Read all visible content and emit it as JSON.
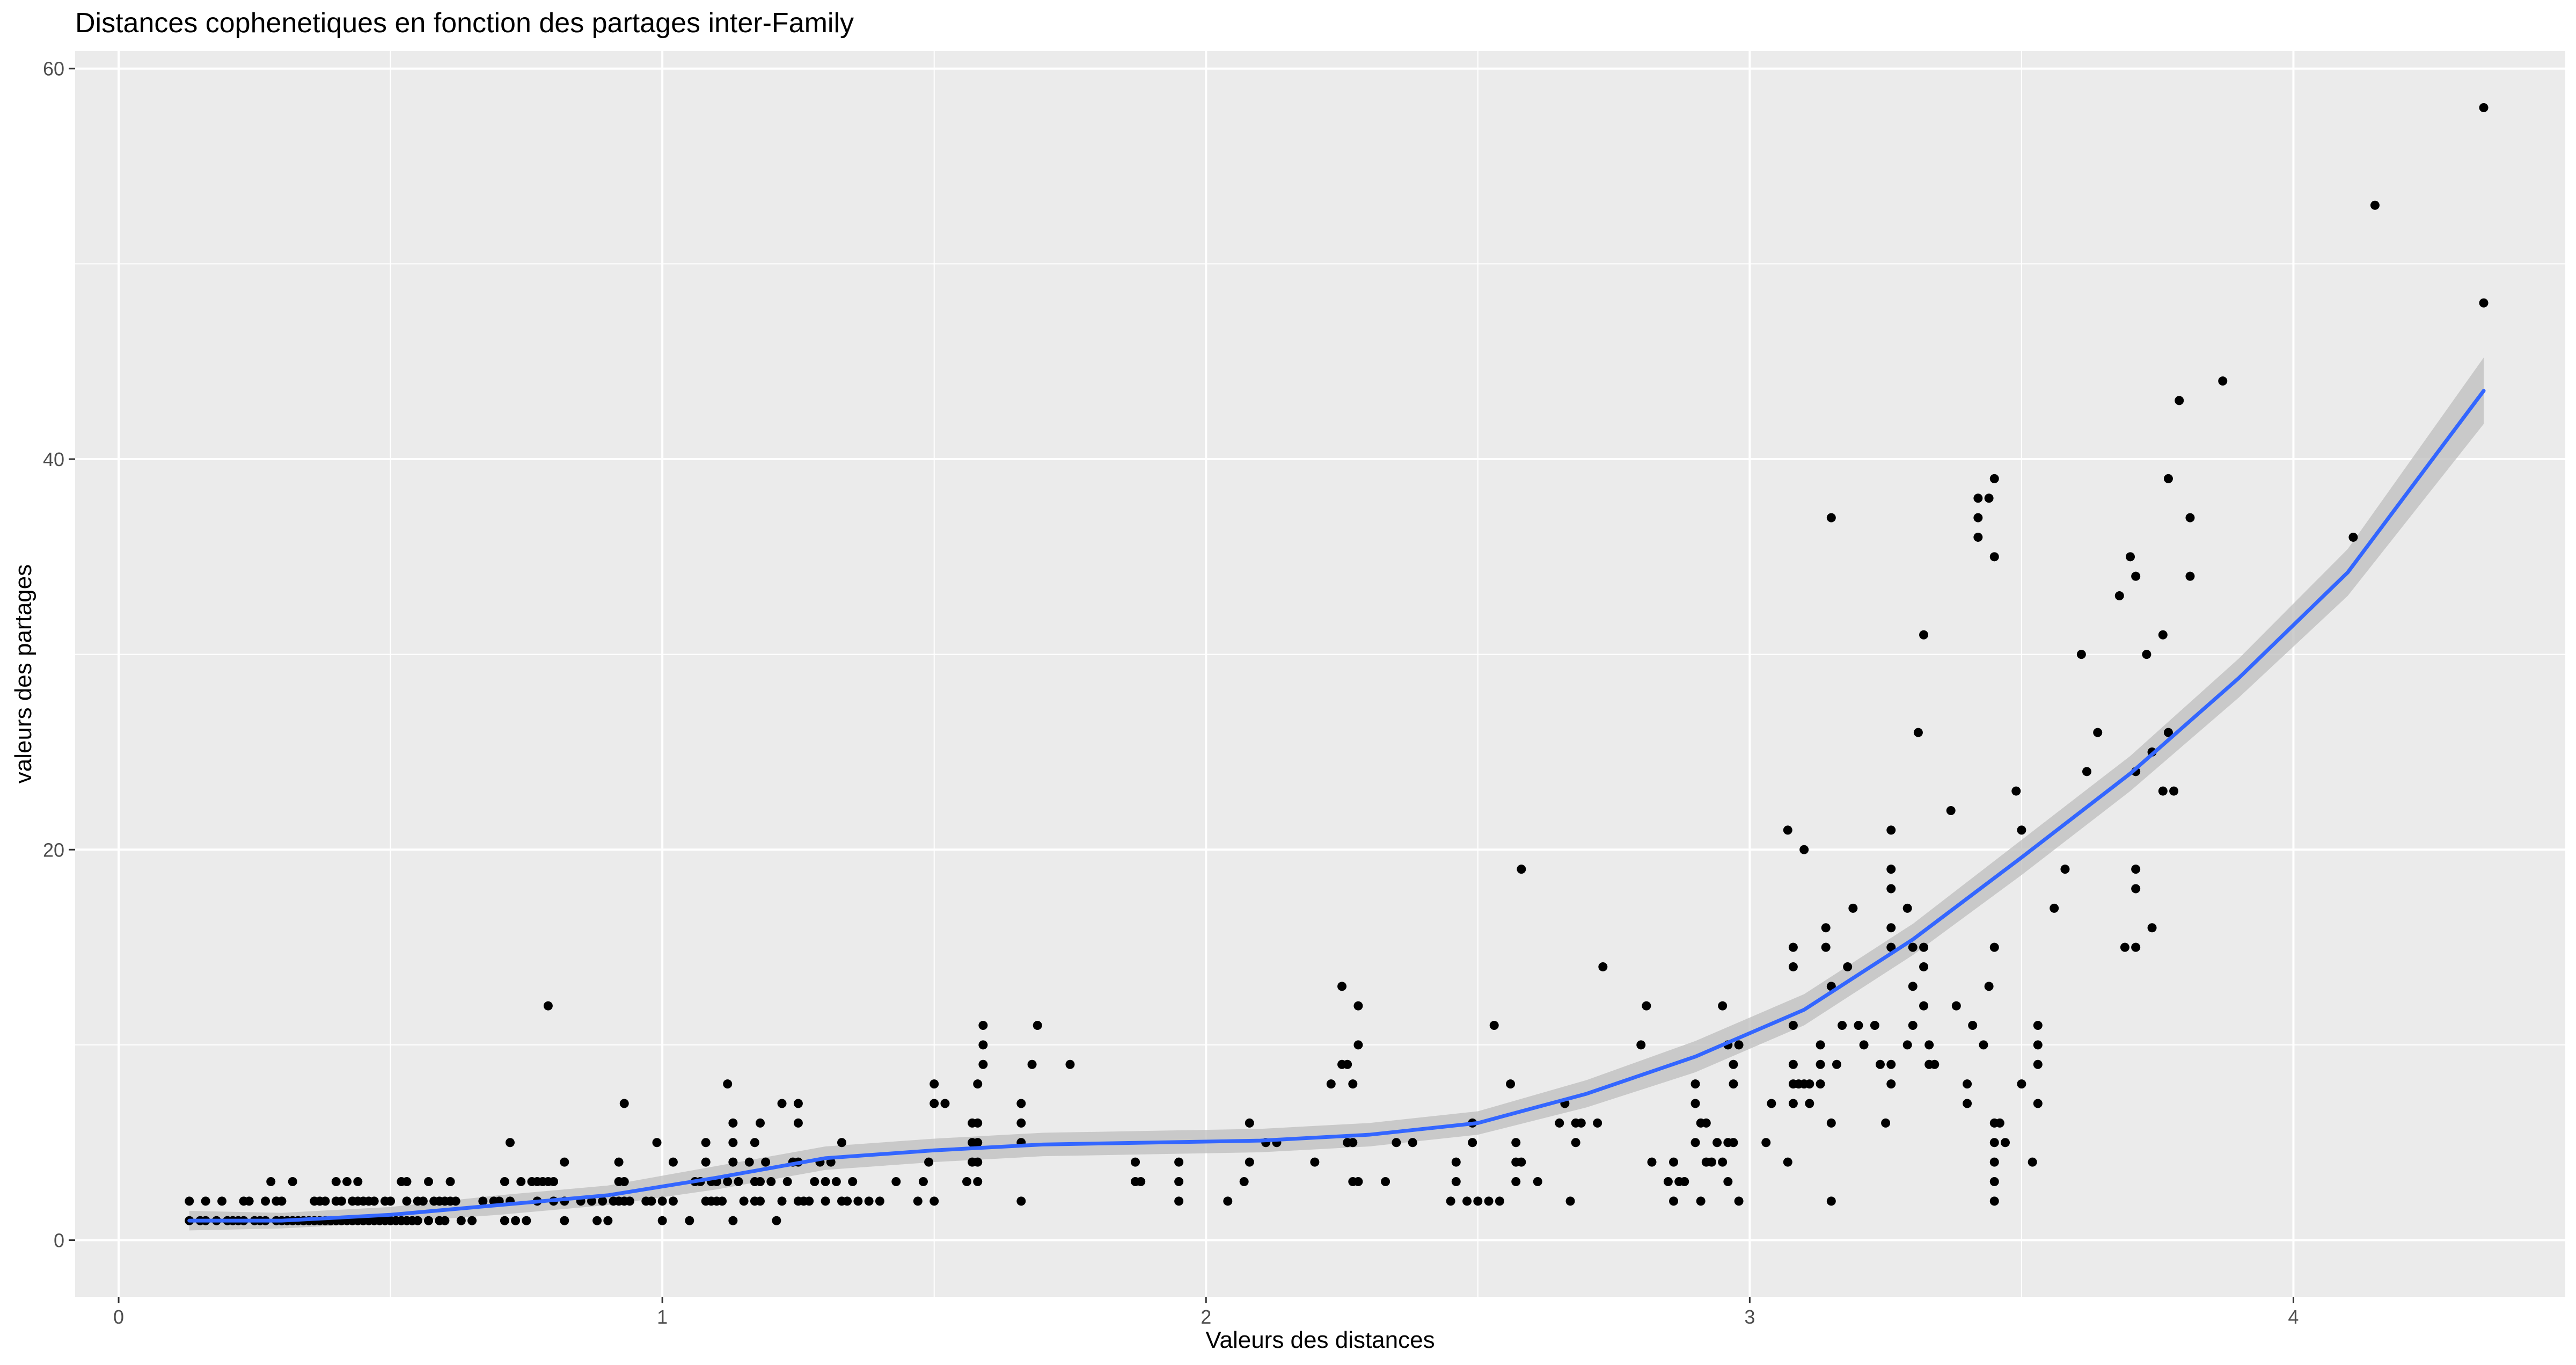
{
  "chart_data": {
    "type": "scatter",
    "title": "Distances cophenetiques en fonction des partages inter-Family",
    "xlabel": "Valeurs des distances",
    "ylabel": "valeurs des partages",
    "xlim": [
      -0.08,
      4.5
    ],
    "ylim": [
      -2.9,
      60.9
    ],
    "x_ticks": [
      "0",
      "1",
      "2",
      "3",
      "4"
    ],
    "y_ticks": [
      "0",
      "20",
      "40",
      "60"
    ],
    "grid": true,
    "legend": "none",
    "colors": {
      "panel": "#ebebeb",
      "grid": "#ffffff",
      "points": "#000000",
      "smooth": "#3366ff",
      "ribbon": "#bdbdbd"
    },
    "points": [
      [
        0.13,
        1
      ],
      [
        0.13,
        2
      ],
      [
        0.15,
        1
      ],
      [
        0.16,
        1
      ],
      [
        0.16,
        2
      ],
      [
        0.18,
        1
      ],
      [
        0.19,
        2
      ],
      [
        0.2,
        1
      ],
      [
        0.21,
        1
      ],
      [
        0.22,
        1
      ],
      [
        0.23,
        1
      ],
      [
        0.23,
        2
      ],
      [
        0.24,
        2
      ],
      [
        0.25,
        1
      ],
      [
        0.26,
        1
      ],
      [
        0.27,
        1
      ],
      [
        0.27,
        2
      ],
      [
        0.28,
        3
      ],
      [
        0.29,
        1
      ],
      [
        0.29,
        2
      ],
      [
        0.3,
        1
      ],
      [
        0.3,
        2
      ],
      [
        0.31,
        1
      ],
      [
        0.32,
        1
      ],
      [
        0.32,
        3
      ],
      [
        0.33,
        1
      ],
      [
        0.34,
        1
      ],
      [
        0.35,
        1
      ],
      [
        0.36,
        1
      ],
      [
        0.36,
        2
      ],
      [
        0.37,
        1
      ],
      [
        0.37,
        2
      ],
      [
        0.38,
        1
      ],
      [
        0.38,
        2
      ],
      [
        0.39,
        1
      ],
      [
        0.4,
        1
      ],
      [
        0.4,
        2
      ],
      [
        0.4,
        3
      ],
      [
        0.41,
        1
      ],
      [
        0.41,
        2
      ],
      [
        0.42,
        1
      ],
      [
        0.42,
        3
      ],
      [
        0.43,
        1
      ],
      [
        0.43,
        2
      ],
      [
        0.44,
        1
      ],
      [
        0.44,
        2
      ],
      [
        0.44,
        3
      ],
      [
        0.45,
        1
      ],
      [
        0.45,
        2
      ],
      [
        0.46,
        1
      ],
      [
        0.46,
        2
      ],
      [
        0.47,
        1
      ],
      [
        0.47,
        2
      ],
      [
        0.48,
        1
      ],
      [
        0.49,
        1
      ],
      [
        0.49,
        2
      ],
      [
        0.5,
        1
      ],
      [
        0.5,
        2
      ],
      [
        0.51,
        1
      ],
      [
        0.52,
        1
      ],
      [
        0.52,
        3
      ],
      [
        0.53,
        1
      ],
      [
        0.53,
        2
      ],
      [
        0.53,
        3
      ],
      [
        0.54,
        1
      ],
      [
        0.55,
        1
      ],
      [
        0.55,
        2
      ],
      [
        0.56,
        2
      ],
      [
        0.57,
        1
      ],
      [
        0.57,
        3
      ],
      [
        0.58,
        2
      ],
      [
        0.59,
        1
      ],
      [
        0.59,
        2
      ],
      [
        0.6,
        1
      ],
      [
        0.6,
        2
      ],
      [
        0.61,
        2
      ],
      [
        0.61,
        3
      ],
      [
        0.62,
        2
      ],
      [
        0.63,
        1
      ],
      [
        0.65,
        1
      ],
      [
        0.67,
        2
      ],
      [
        0.69,
        2
      ],
      [
        0.7,
        2
      ],
      [
        0.71,
        1
      ],
      [
        0.71,
        3
      ],
      [
        0.72,
        2
      ],
      [
        0.72,
        5
      ],
      [
        0.73,
        1
      ],
      [
        0.74,
        3
      ],
      [
        0.75,
        1
      ],
      [
        0.76,
        3
      ],
      [
        0.77,
        2
      ],
      [
        0.77,
        3
      ],
      [
        0.78,
        3
      ],
      [
        0.79,
        3
      ],
      [
        0.79,
        12
      ],
      [
        0.8,
        2
      ],
      [
        0.8,
        3
      ],
      [
        0.82,
        1
      ],
      [
        0.82,
        2
      ],
      [
        0.82,
        4
      ],
      [
        0.85,
        2
      ],
      [
        0.87,
        2
      ],
      [
        0.88,
        1
      ],
      [
        0.89,
        2
      ],
      [
        0.9,
        1
      ],
      [
        0.91,
        2
      ],
      [
        0.92,
        2
      ],
      [
        0.92,
        3
      ],
      [
        0.92,
        4
      ],
      [
        0.93,
        2
      ],
      [
        0.93,
        3
      ],
      [
        0.93,
        7
      ],
      [
        0.94,
        2
      ],
      [
        0.97,
        2
      ],
      [
        0.98,
        2
      ],
      [
        0.99,
        5
      ],
      [
        1.0,
        1
      ],
      [
        1.0,
        2
      ],
      [
        1.02,
        4
      ],
      [
        1.02,
        2
      ],
      [
        1.05,
        1
      ],
      [
        1.06,
        3
      ],
      [
        1.07,
        3
      ],
      [
        1.08,
        2
      ],
      [
        1.08,
        4
      ],
      [
        1.08,
        5
      ],
      [
        1.09,
        2
      ],
      [
        1.09,
        3
      ],
      [
        1.1,
        2
      ],
      [
        1.1,
        3
      ],
      [
        1.11,
        2
      ],
      [
        1.12,
        3
      ],
      [
        1.12,
        8
      ],
      [
        1.13,
        1
      ],
      [
        1.13,
        4
      ],
      [
        1.13,
        5
      ],
      [
        1.13,
        6
      ],
      [
        1.14,
        3
      ],
      [
        1.15,
        2
      ],
      [
        1.16,
        4
      ],
      [
        1.17,
        2
      ],
      [
        1.17,
        3
      ],
      [
        1.17,
        5
      ],
      [
        1.18,
        2
      ],
      [
        1.18,
        3
      ],
      [
        1.18,
        6
      ],
      [
        1.19,
        4
      ],
      [
        1.2,
        3
      ],
      [
        1.21,
        1
      ],
      [
        1.22,
        2
      ],
      [
        1.22,
        7
      ],
      [
        1.23,
        3
      ],
      [
        1.24,
        4
      ],
      [
        1.25,
        2
      ],
      [
        1.25,
        4
      ],
      [
        1.25,
        6
      ],
      [
        1.25,
        7
      ],
      [
        1.26,
        2
      ],
      [
        1.27,
        2
      ],
      [
        1.28,
        3
      ],
      [
        1.29,
        4
      ],
      [
        1.3,
        2
      ],
      [
        1.3,
        3
      ],
      [
        1.31,
        4
      ],
      [
        1.32,
        3
      ],
      [
        1.33,
        2
      ],
      [
        1.33,
        5
      ],
      [
        1.34,
        2
      ],
      [
        1.35,
        3
      ],
      [
        1.36,
        2
      ],
      [
        1.38,
        2
      ],
      [
        1.4,
        2
      ],
      [
        1.43,
        3
      ],
      [
        1.47,
        2
      ],
      [
        1.48,
        3
      ],
      [
        1.49,
        4
      ],
      [
        1.5,
        2
      ],
      [
        1.5,
        7
      ],
      [
        1.5,
        8
      ],
      [
        1.52,
        7
      ],
      [
        1.56,
        3
      ],
      [
        1.57,
        4
      ],
      [
        1.57,
        5
      ],
      [
        1.57,
        6
      ],
      [
        1.58,
        3
      ],
      [
        1.58,
        4
      ],
      [
        1.58,
        5
      ],
      [
        1.58,
        6
      ],
      [
        1.58,
        8
      ],
      [
        1.59,
        9
      ],
      [
        1.59,
        10
      ],
      [
        1.59,
        11
      ],
      [
        1.66,
        2
      ],
      [
        1.66,
        5
      ],
      [
        1.66,
        6
      ],
      [
        1.66,
        7
      ],
      [
        1.68,
        9
      ],
      [
        1.69,
        11
      ],
      [
        1.75,
        9
      ],
      [
        1.87,
        3
      ],
      [
        1.87,
        4
      ],
      [
        1.88,
        3
      ],
      [
        1.95,
        2
      ],
      [
        1.95,
        3
      ],
      [
        1.95,
        4
      ],
      [
        2.04,
        2
      ],
      [
        2.07,
        3
      ],
      [
        2.08,
        4
      ],
      [
        2.08,
        6
      ],
      [
        2.11,
        5
      ],
      [
        2.13,
        5
      ],
      [
        2.2,
        4
      ],
      [
        2.23,
        8
      ],
      [
        2.25,
        9
      ],
      [
        2.25,
        13
      ],
      [
        2.26,
        9
      ],
      [
        2.26,
        5
      ],
      [
        2.27,
        3
      ],
      [
        2.27,
        5
      ],
      [
        2.27,
        8
      ],
      [
        2.28,
        3
      ],
      [
        2.28,
        10
      ],
      [
        2.28,
        12
      ],
      [
        2.33,
        3
      ],
      [
        2.35,
        5
      ],
      [
        2.38,
        5
      ],
      [
        2.45,
        2
      ],
      [
        2.46,
        3
      ],
      [
        2.46,
        4
      ],
      [
        2.48,
        2
      ],
      [
        2.49,
        5
      ],
      [
        2.49,
        6
      ],
      [
        2.5,
        2
      ],
      [
        2.52,
        2
      ],
      [
        2.53,
        11
      ],
      [
        2.54,
        2
      ],
      [
        2.56,
        8
      ],
      [
        2.57,
        3
      ],
      [
        2.57,
        4
      ],
      [
        2.57,
        5
      ],
      [
        2.58,
        4
      ],
      [
        2.58,
        19
      ],
      [
        2.61,
        3
      ],
      [
        2.65,
        6
      ],
      [
        2.66,
        7
      ],
      [
        2.67,
        2
      ],
      [
        2.68,
        5
      ],
      [
        2.68,
        6
      ],
      [
        2.69,
        6
      ],
      [
        2.72,
        6
      ],
      [
        2.73,
        14
      ],
      [
        2.8,
        10
      ],
      [
        2.81,
        12
      ],
      [
        2.82,
        4
      ],
      [
        2.85,
        3
      ],
      [
        2.86,
        2
      ],
      [
        2.86,
        4
      ],
      [
        2.87,
        3
      ],
      [
        2.88,
        3
      ],
      [
        2.9,
        5
      ],
      [
        2.9,
        7
      ],
      [
        2.9,
        8
      ],
      [
        2.91,
        2
      ],
      [
        2.91,
        6
      ],
      [
        2.92,
        4
      ],
      [
        2.92,
        6
      ],
      [
        2.93,
        4
      ],
      [
        2.94,
        5
      ],
      [
        2.95,
        4
      ],
      [
        2.95,
        12
      ],
      [
        2.96,
        3
      ],
      [
        2.96,
        5
      ],
      [
        2.96,
        10
      ],
      [
        2.97,
        5
      ],
      [
        2.97,
        8
      ],
      [
        2.97,
        9
      ],
      [
        2.98,
        2
      ],
      [
        2.98,
        10
      ],
      [
        3.03,
        5
      ],
      [
        3.04,
        7
      ],
      [
        3.07,
        4
      ],
      [
        3.07,
        21
      ],
      [
        3.08,
        7
      ],
      [
        3.08,
        8
      ],
      [
        3.08,
        9
      ],
      [
        3.08,
        11
      ],
      [
        3.08,
        14
      ],
      [
        3.08,
        15
      ],
      [
        3.09,
        8
      ],
      [
        3.1,
        8
      ],
      [
        3.1,
        20
      ],
      [
        3.11,
        7
      ],
      [
        3.11,
        8
      ],
      [
        3.13,
        8
      ],
      [
        3.13,
        9
      ],
      [
        3.13,
        10
      ],
      [
        3.14,
        15
      ],
      [
        3.14,
        16
      ],
      [
        3.15,
        2
      ],
      [
        3.15,
        6
      ],
      [
        3.15,
        13
      ],
      [
        3.15,
        37
      ],
      [
        3.16,
        9
      ],
      [
        3.17,
        11
      ],
      [
        3.18,
        14
      ],
      [
        3.19,
        17
      ],
      [
        3.2,
        11
      ],
      [
        3.21,
        10
      ],
      [
        3.23,
        11
      ],
      [
        3.24,
        9
      ],
      [
        3.25,
        6
      ],
      [
        3.26,
        8
      ],
      [
        3.26,
        9
      ],
      [
        3.26,
        15
      ],
      [
        3.26,
        16
      ],
      [
        3.26,
        18
      ],
      [
        3.26,
        19
      ],
      [
        3.26,
        21
      ],
      [
        3.29,
        10
      ],
      [
        3.29,
        17
      ],
      [
        3.3,
        11
      ],
      [
        3.3,
        13
      ],
      [
        3.3,
        15
      ],
      [
        3.31,
        26
      ],
      [
        3.32,
        12
      ],
      [
        3.32,
        14
      ],
      [
        3.32,
        15
      ],
      [
        3.32,
        31
      ],
      [
        3.33,
        9
      ],
      [
        3.33,
        10
      ],
      [
        3.34,
        9
      ],
      [
        3.37,
        22
      ],
      [
        3.38,
        12
      ],
      [
        3.4,
        7
      ],
      [
        3.4,
        8
      ],
      [
        3.41,
        11
      ],
      [
        3.42,
        36
      ],
      [
        3.42,
        37
      ],
      [
        3.42,
        38
      ],
      [
        3.43,
        10
      ],
      [
        3.44,
        38
      ],
      [
        3.44,
        13
      ],
      [
        3.45,
        2
      ],
      [
        3.45,
        3
      ],
      [
        3.45,
        4
      ],
      [
        3.45,
        5
      ],
      [
        3.45,
        6
      ],
      [
        3.45,
        15
      ],
      [
        3.45,
        35
      ],
      [
        3.45,
        39
      ],
      [
        3.46,
        6
      ],
      [
        3.47,
        5
      ],
      [
        3.49,
        23
      ],
      [
        3.5,
        21
      ],
      [
        3.5,
        8
      ],
      [
        3.52,
        4
      ],
      [
        3.53,
        7
      ],
      [
        3.53,
        9
      ],
      [
        3.53,
        10
      ],
      [
        3.53,
        11
      ],
      [
        3.56,
        17
      ],
      [
        3.58,
        19
      ],
      [
        3.61,
        30
      ],
      [
        3.62,
        24
      ],
      [
        3.64,
        26
      ],
      [
        3.68,
        33
      ],
      [
        3.69,
        15
      ],
      [
        3.7,
        35
      ],
      [
        3.71,
        15
      ],
      [
        3.71,
        18
      ],
      [
        3.71,
        19
      ],
      [
        3.71,
        24
      ],
      [
        3.71,
        34
      ],
      [
        3.73,
        30
      ],
      [
        3.74,
        16
      ],
      [
        3.74,
        25
      ],
      [
        3.76,
        31
      ],
      [
        3.76,
        23
      ],
      [
        3.77,
        26
      ],
      [
        3.77,
        39
      ],
      [
        3.78,
        23
      ],
      [
        3.79,
        43
      ],
      [
        3.81,
        37
      ],
      [
        3.81,
        34
      ],
      [
        3.87,
        44
      ],
      [
        4.11,
        36
      ],
      [
        4.15,
        53
      ],
      [
        4.35,
        48
      ],
      [
        4.35,
        58
      ]
    ],
    "smooth_curve": {
      "x": [
        0.13,
        0.3,
        0.5,
        0.7,
        0.9,
        1.1,
        1.3,
        1.5,
        1.7,
        1.9,
        2.1,
        2.3,
        2.5,
        2.7,
        2.9,
        3.1,
        3.3,
        3.5,
        3.7,
        3.9,
        4.1,
        4.35
      ],
      "y": [
        1.0,
        1.0,
        1.3,
        1.8,
        2.3,
        3.2,
        4.2,
        4.6,
        4.9,
        5.0,
        5.1,
        5.4,
        6.0,
        7.5,
        9.4,
        11.8,
        15.4,
        19.6,
        23.9,
        28.8,
        34.2,
        43.5
      ],
      "band": [
        0.5,
        0.4,
        0.4,
        0.5,
        0.5,
        0.6,
        0.6,
        0.6,
        0.6,
        0.6,
        0.6,
        0.6,
        0.6,
        0.7,
        0.8,
        0.8,
        0.8,
        0.9,
        0.9,
        1.0,
        1.2,
        1.7
      ]
    }
  }
}
